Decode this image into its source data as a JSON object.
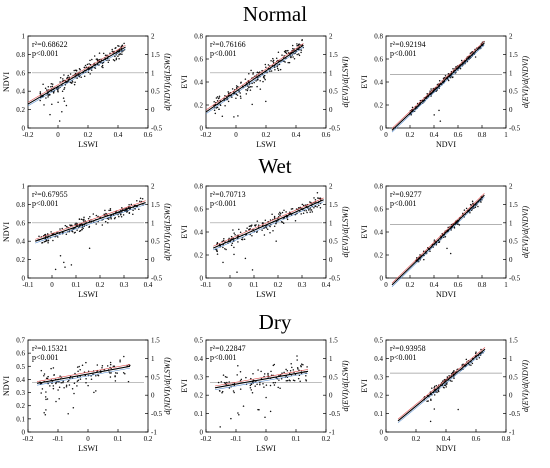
{
  "rows": [
    {
      "title": "Normal"
    },
    {
      "title": "Wet"
    },
    {
      "title": "Dry"
    }
  ],
  "colors": {
    "points": "#111111",
    "fit": "#000000",
    "ci_upper": "#e05050",
    "ci_lower": "#5a8fd0",
    "ref": "#999999"
  },
  "chart_data": [
    {
      "type": "scatter",
      "xlabel": "LSWI",
      "ylabel": "NDVI",
      "y2label": "d(NDVI)/d(LSWI)",
      "xlim": [
        -0.2,
        0.6
      ],
      "xticks": [
        "-0.2",
        "0",
        "0.2",
        "0.4",
        "0.6"
      ],
      "ylim": [
        0,
        1
      ],
      "yticks": [
        "0",
        "0.2",
        "0.4",
        "0.6",
        "0.8",
        "1"
      ],
      "y2lim": [
        -0.5,
        2
      ],
      "y2ticks": [
        "-0.5",
        "0",
        "0.5",
        "1",
        "1.5",
        "2"
      ],
      "annotation_r2": "r²=0.68622",
      "annotation_p": "p<0.001",
      "fit": {
        "x": [
          -0.2,
          0.45
        ],
        "y": [
          0.26,
          0.88
        ]
      },
      "ref_y2": 1,
      "points": {
        "n": 220,
        "x_range": [
          -0.12,
          0.45
        ],
        "spread": 0.07,
        "outliers": 8
      }
    },
    {
      "type": "scatter",
      "xlabel": "LSWI",
      "ylabel": "EVI",
      "y2label": "d(EVI)/d(LSWI)",
      "xlim": [
        -0.2,
        0.6
      ],
      "xticks": [
        "-0.2",
        "0",
        "0.2",
        "0.4",
        "0.6"
      ],
      "ylim": [
        0,
        0.8
      ],
      "yticks": [
        "0",
        "0.2",
        "0.4",
        "0.6",
        "0.8"
      ],
      "y2lim": [
        -0.5,
        2
      ],
      "y2ticks": [
        "-0.5",
        "0",
        "0.5",
        "1",
        "1.5",
        "2"
      ],
      "annotation_r2": "r²=0.76166",
      "annotation_p": "p<0.001",
      "fit": {
        "x": [
          -0.2,
          0.45
        ],
        "y": [
          0.14,
          0.72
        ]
      },
      "ref_y2": 1,
      "points": {
        "n": 220,
        "x_range": [
          -0.15,
          0.45
        ],
        "spread": 0.06,
        "outliers": 10
      }
    },
    {
      "type": "scatter",
      "xlabel": "NDVI",
      "ylabel": "EVI",
      "y2label": "d(EVI)/d(NDVI)",
      "xlim": [
        0,
        1
      ],
      "xticks": [
        "0",
        "0.2",
        "0.4",
        "0.6",
        "0.8",
        "1"
      ],
      "ylim": [
        0,
        0.8
      ],
      "yticks": [
        "0",
        "0.2",
        "0.4",
        "0.6",
        "0.8"
      ],
      "y2lim": [
        -0.5,
        2
      ],
      "y2ticks": [
        "-0.5",
        "0",
        "0.5",
        "1",
        "1.5",
        "2"
      ],
      "annotation_r2": "r²=0.92194",
      "annotation_p": "p<0.001",
      "fit": {
        "x": [
          0.05,
          0.82
        ],
        "y": [
          -0.02,
          0.74
        ]
      },
      "ref_y2": 0.95,
      "points": {
        "n": 220,
        "x_range": [
          0.2,
          0.82
        ],
        "spread": 0.025,
        "outliers": 4
      }
    },
    {
      "type": "scatter",
      "xlabel": "LSWI",
      "ylabel": "NDVI",
      "y2label": "d(NDVI)/d(LSWI)",
      "xlim": [
        -0.1,
        0.4
      ],
      "xticks": [
        "-0.1",
        "0",
        "0.1",
        "0.2",
        "0.3",
        "0.4"
      ],
      "ylim": [
        0,
        1
      ],
      "yticks": [
        "0",
        "0.2",
        "0.4",
        "0.6",
        "0.8",
        "1"
      ],
      "y2lim": [
        -0.5,
        2
      ],
      "y2ticks": [
        "-0.5",
        "0",
        "0.5",
        "1",
        "1.5",
        "2"
      ],
      "annotation_r2": "r²=0.67955",
      "annotation_p": "p<0.001",
      "fit": {
        "x": [
          -0.07,
          0.39
        ],
        "y": [
          0.4,
          0.82
        ]
      },
      "ref_y2": 1,
      "points": {
        "n": 200,
        "x_range": [
          -0.06,
          0.38
        ],
        "spread": 0.06,
        "outliers": 6
      }
    },
    {
      "type": "scatter",
      "xlabel": "LSWI",
      "ylabel": "EVI",
      "y2label": "d(EVI)/d(LSWI)",
      "xlim": [
        -0.1,
        0.4
      ],
      "xticks": [
        "-0.1",
        "0",
        "0.1",
        "0.2",
        "0.3",
        "0.4"
      ],
      "ylim": [
        0,
        0.8
      ],
      "yticks": [
        "0",
        "0.2",
        "0.4",
        "0.6",
        "0.8"
      ],
      "y2lim": [
        -0.5,
        2
      ],
      "y2ticks": [
        "-0.5",
        "0",
        "0.5",
        "1",
        "1.5",
        "2"
      ],
      "annotation_r2": "r²=0.70713",
      "annotation_p": "p<0.001",
      "fit": {
        "x": [
          -0.07,
          0.39
        ],
        "y": [
          0.26,
          0.68
        ]
      },
      "ref_y2": 1,
      "points": {
        "n": 200,
        "x_range": [
          -0.06,
          0.38
        ],
        "spread": 0.06,
        "outliers": 6
      }
    },
    {
      "type": "scatter",
      "xlabel": "NDVI",
      "ylabel": "EVI",
      "y2label": "d(EVI)/d(NDVI)",
      "xlim": [
        0,
        1
      ],
      "xticks": [
        "0",
        "0.2",
        "0.4",
        "0.6",
        "0.8",
        "1"
      ],
      "ylim": [
        0,
        0.8
      ],
      "yticks": [
        "0",
        "0.2",
        "0.4",
        "0.6",
        "0.8"
      ],
      "y2lim": [
        -0.5,
        2
      ],
      "y2ticks": [
        "-0.5",
        "0",
        "0.5",
        "1",
        "1.5",
        "2"
      ],
      "annotation_r2": "r²=0.9277",
      "annotation_p": "p<0.001",
      "fit": {
        "x": [
          0.05,
          0.82
        ],
        "y": [
          -0.06,
          0.72
        ]
      },
      "ref_y2": 0.95,
      "points": {
        "n": 160,
        "x_range": [
          0.25,
          0.8
        ],
        "spread": 0.03,
        "outliers": 4
      }
    },
    {
      "type": "scatter",
      "xlabel": "LSWI",
      "ylabel": "NDVI",
      "y2label": "d(NDVI)/d(LSWI)",
      "xlim": [
        -0.2,
        0.2
      ],
      "xticks": [
        "-0.2",
        "-0.1",
        "0",
        "0.1",
        "0.2"
      ],
      "ylim": [
        0,
        0.7
      ],
      "yticks": [
        "0",
        "0.1",
        "0.2",
        "0.3",
        "0.4",
        "0.5",
        "0.6",
        "0.7"
      ],
      "y2lim": [
        -1,
        1.5
      ],
      "y2ticks": [
        "-1",
        "-0.5",
        "0",
        "0.5",
        "1",
        "1.5"
      ],
      "annotation_r2": "r²=0.15321",
      "annotation_p": "p<0.001",
      "fit": {
        "x": [
          -0.17,
          0.14
        ],
        "y": [
          0.37,
          0.5
        ]
      },
      "ref_y2": 0.35,
      "points": {
        "n": 120,
        "x_range": [
          -0.16,
          0.14
        ],
        "spread": 0.08,
        "outliers": 10
      }
    },
    {
      "type": "scatter",
      "xlabel": "LSWI",
      "ylabel": "EVI",
      "y2label": "d(EVI)/d(LSWI)",
      "xlim": [
        -0.2,
        0.2
      ],
      "xticks": [
        "-0.2",
        "-0.1",
        "0",
        "0.1",
        "0.2"
      ],
      "ylim": [
        0,
        0.5
      ],
      "yticks": [
        "0",
        "0.1",
        "0.2",
        "0.3",
        "0.4",
        "0.5"
      ],
      "y2lim": [
        -1,
        1.5
      ],
      "y2ticks": [
        "-1",
        "-0.5",
        "0",
        "0.5",
        "1",
        "1.5"
      ],
      "annotation_r2": "r²=0.22847",
      "annotation_p": "p<0.001",
      "fit": {
        "x": [
          -0.17,
          0.14
        ],
        "y": [
          0.24,
          0.33
        ]
      },
      "ref_y2": 0.35,
      "points": {
        "n": 120,
        "x_range": [
          -0.16,
          0.14
        ],
        "spread": 0.05,
        "outliers": 10
      }
    },
    {
      "type": "scatter",
      "xlabel": "NDVI",
      "ylabel": "EVI",
      "y2label": "d(EVI)/d(NDVI)",
      "xlim": [
        0,
        0.8
      ],
      "xticks": [
        "0",
        "0.2",
        "0.4",
        "0.6",
        "0.8"
      ],
      "ylim": [
        0,
        0.5
      ],
      "yticks": [
        "0",
        "0.1",
        "0.2",
        "0.3",
        "0.4",
        "0.5"
      ],
      "y2lim": [
        -1,
        1.5
      ],
      "y2ticks": [
        "-1",
        "-0.5",
        "0",
        "0.5",
        "1",
        "1.5"
      ],
      "annotation_r2": "r²=0.93958",
      "annotation_p": "p<0.001",
      "fit": {
        "x": [
          0.08,
          0.66
        ],
        "y": [
          0.06,
          0.45
        ]
      },
      "ref_y2": 0.6,
      "points": {
        "n": 120,
        "x_range": [
          0.25,
          0.65
        ],
        "spread": 0.02,
        "outliers": 3
      }
    }
  ]
}
